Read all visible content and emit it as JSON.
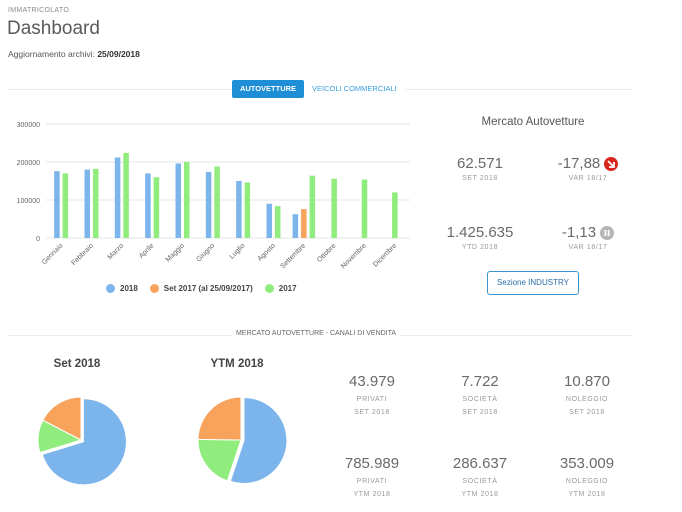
{
  "header": {
    "supertitle": "IMMATRICOLATO",
    "title": "Dashboard",
    "update_label": "Aggiornamento archivi:",
    "update_date": "25/09/2018"
  },
  "tabs": [
    {
      "label": "AUTOVETTURE",
      "active": true
    },
    {
      "label": "VEICOLI COMMERCIALI",
      "active": false
    }
  ],
  "colors": {
    "series_2018": "#7cb5ec",
    "series_set2017": "#f7a35c",
    "series_2017": "#90ed7d",
    "accent": "#1e8fd6",
    "negative": "#d9261c"
  },
  "chart_data": [
    {
      "type": "bar",
      "categories": [
        "Gennaio",
        "Febbraio",
        "Marzo",
        "Aprile",
        "Maggio",
        "Giugno",
        "Luglio",
        "Agosto",
        "Settembre",
        "Ottobre",
        "Novembre",
        "Dicembre"
      ],
      "ylim": [
        0,
        300000
      ],
      "yticks": [
        "0",
        "100000",
        "200000",
        "300000"
      ],
      "grid": true,
      "legend_position": "bottom",
      "series": [
        {
          "name": "2018",
          "values": [
            176000,
            180000,
            212000,
            170000,
            196000,
            174000,
            150000,
            90000,
            62571,
            null,
            null,
            null
          ]
        },
        {
          "name": "Set 2017 (al 25/09/2017)",
          "values": [
            null,
            null,
            null,
            null,
            null,
            null,
            null,
            null,
            76000,
            null,
            null,
            null
          ]
        },
        {
          "name": "2017",
          "values": [
            170000,
            182000,
            224000,
            160000,
            200000,
            188000,
            146000,
            84000,
            164000,
            156000,
            154000,
            120000
          ]
        }
      ]
    },
    {
      "type": "pie",
      "title": "Set 2018",
      "labels": [
        "Privati",
        "Società",
        "Noleggio"
      ],
      "values": [
        43979,
        7722,
        10870
      ]
    },
    {
      "type": "pie",
      "title": "YTM 2018",
      "labels": [
        "Privati",
        "Società",
        "Noleggio"
      ],
      "values": [
        785989,
        286637,
        353009
      ]
    }
  ],
  "market": {
    "title": "Mercato Autovetture",
    "set_value": "62.571",
    "set_label": "SET 2018",
    "var_value": "-17,88",
    "var_label": "VAR 18/17",
    "var_icon": "arrow-down-right-icon",
    "ytd_value": "1.425.635",
    "ytd_label": "YTD 2018",
    "ytd_var_value": "-1,13",
    "ytd_var_label": "VAR 18/17",
    "ytd_var_icon": "pause-icon",
    "button_label": "Sezione INDUSTRY"
  },
  "channels": {
    "section_title": "MERCATO AUTOVETTURE - CANALI DI VENDITA",
    "pie1_title": "Set 2018",
    "pie2_title": "YTM 2018",
    "set": [
      {
        "value": "43.979",
        "label": "PRIVATI",
        "period": "SET 2018"
      },
      {
        "value": "7.722",
        "label": "SOCIETÀ",
        "period": "SET 2018"
      },
      {
        "value": "10.870",
        "label": "NOLEGGIO",
        "period": "SET 2018"
      }
    ],
    "ytm": [
      {
        "value": "785.989",
        "label": "PRIVATI",
        "period": "YTM 2018"
      },
      {
        "value": "286.637",
        "label": "SOCIETÀ",
        "period": "YTM 2018"
      },
      {
        "value": "353.009",
        "label": "NOLEGGIO",
        "period": "YTM 2018"
      }
    ]
  }
}
